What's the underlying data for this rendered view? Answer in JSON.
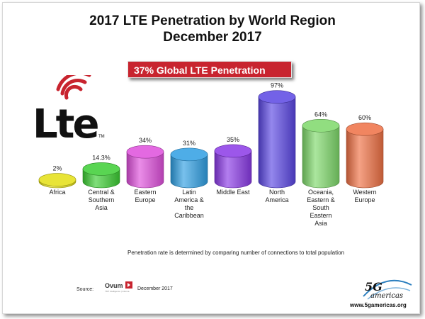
{
  "title": {
    "line1": "2017 LTE Penetration by World Region",
    "line2": "December 2017"
  },
  "banner": "37% Global LTE Penetration",
  "logo": {
    "lte_text": "Lte",
    "trademark": "TM"
  },
  "chart_data": {
    "type": "bar",
    "categories": [
      [
        "Africa"
      ],
      [
        "Central &",
        "Southern",
        "Asia"
      ],
      [
        "Eastern",
        "Europe"
      ],
      [
        "Latin",
        "America &",
        "the",
        "Caribbean"
      ],
      [
        "Middle East"
      ],
      [
        "North",
        "America"
      ],
      [
        "Oceania,",
        "Eastern &",
        "South",
        "Eastern",
        "Asia"
      ],
      [
        "Western",
        "Europe"
      ]
    ],
    "values": [
      2,
      14.3,
      34,
      31,
      35,
      97,
      64,
      60
    ],
    "value_labels": [
      "2%",
      "14.3%",
      "34%",
      "31%",
      "35%",
      "97%",
      "64%",
      "60%"
    ],
    "colors": [
      "#e4df14",
      "#3ccd33",
      "#de4fdc",
      "#2f9fe3",
      "#8a39e6",
      "#5a46e3",
      "#7ed86a",
      "#ef7044"
    ],
    "ylim": [
      0,
      100
    ],
    "grid": false,
    "legend": "none"
  },
  "footnote": "Penetration rate is determined by comparing number of connections to total population",
  "source": {
    "label": "Source:",
    "logo_text": "Ovum",
    "logo_subtext": "TMT intelligence | informa",
    "date": "December 2017"
  },
  "brand": {
    "logo_text": "5G",
    "logo_script": "americas",
    "url": "www.5gamericas.org"
  }
}
